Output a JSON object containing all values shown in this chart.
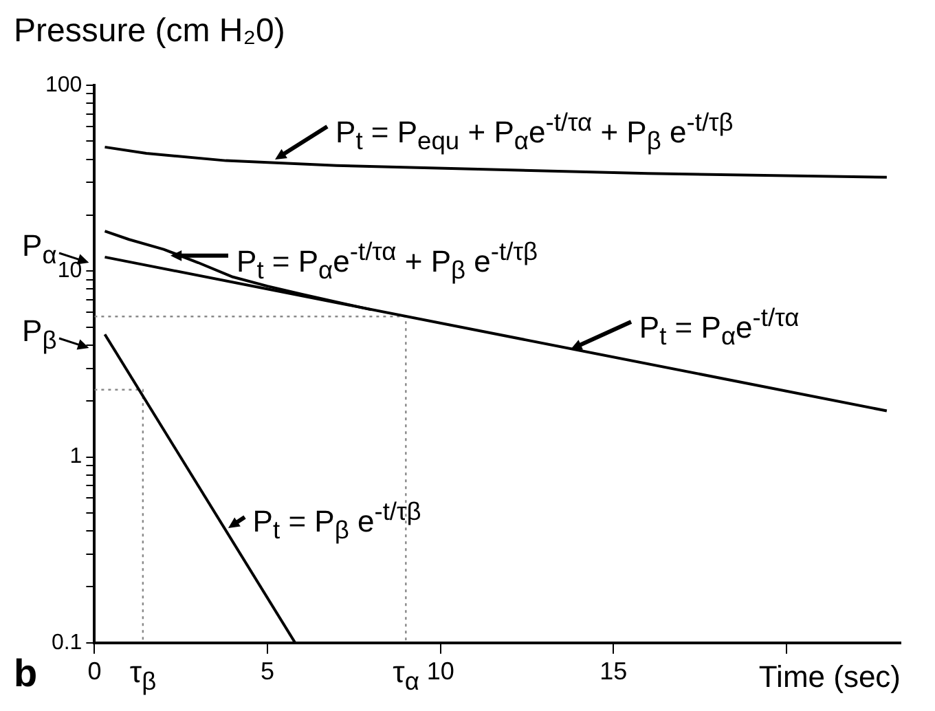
{
  "chart_data": {
    "type": "line",
    "ylabel": "Pressure (cm H₂0)",
    "xlabel": "Time (sec)",
    "log": "y",
    "grid": false,
    "legend": false,
    "marker": "none",
    "line_style": "solid",
    "xlim": [
      0,
      23.3
    ],
    "xticks": [
      0,
      5,
      10,
      15,
      {
        "value": 20,
        "label": null
      }
    ],
    "ylim": [
      0.1,
      100
    ],
    "yticks": [
      0.1,
      {
        "value": 0.2,
        "label": null
      },
      {
        "value": 0.3,
        "label": null
      },
      {
        "value": 0.4,
        "label": null
      },
      {
        "value": 0.5,
        "label": null
      },
      {
        "value": 0.6,
        "label": null
      },
      {
        "value": 0.7,
        "label": null
      },
      {
        "value": 0.8,
        "label": null
      },
      {
        "value": 0.9,
        "label": null
      },
      1,
      {
        "value": 2,
        "label": null
      },
      {
        "value": 3,
        "label": null
      },
      {
        "value": 4,
        "label": null
      },
      {
        "value": 5,
        "label": null
      },
      {
        "value": 6,
        "label": null
      },
      {
        "value": 7,
        "label": null
      },
      {
        "value": 8,
        "label": null
      },
      {
        "value": 9,
        "label": null
      },
      10,
      {
        "value": 20,
        "label": null
      },
      {
        "value": 30,
        "label": null
      },
      {
        "value": 40,
        "label": null
      },
      {
        "value": 50,
        "label": null
      },
      {
        "value": 60,
        "label": null
      },
      {
        "value": 70,
        "label": null
      },
      {
        "value": 80,
        "label": null
      },
      {
        "value": 90,
        "label": null
      },
      100
    ],
    "series": [
      {
        "type": "line",
        "color": "#000000",
        "x": [
          0.3,
          1.5,
          3.8,
          7,
          10.7,
          16,
          22.9
        ],
        "values": [
          46.5,
          43,
          39.3,
          37,
          35.5,
          33.5,
          32
        ]
      },
      {
        "type": "line",
        "color": "#000000",
        "x": [
          0.3,
          1,
          2,
          3,
          4,
          5,
          6,
          8
        ],
        "values": [
          16.4,
          14.8,
          13.1,
          11.1,
          9.3,
          8.3,
          7.5,
          6.2
        ]
      },
      {
        "type": "line",
        "color": "#000000",
        "x": [
          0.3,
          22.9
        ],
        "values": [
          11.9,
          1.77
        ]
      },
      {
        "type": "line",
        "color": "#000000",
        "x": [
          0.3,
          5.8
        ],
        "values": [
          4.57,
          0.1
        ]
      },
      {
        "type": "line",
        "color": "#888888",
        "line_style": "dotted",
        "x": [
          0,
          9,
          9
        ],
        "values": [
          5.7,
          5.7,
          0.1
        ]
      },
      {
        "type": "line",
        "color": "#888888",
        "line_style": "dotted",
        "x": [
          0,
          1.4,
          1.4
        ],
        "values": [
          2.3,
          2.3,
          0.1
        ]
      }
    ],
    "annotations": [
      "P$_{t}$ = P$_{equ}$ + P$_{α}$e$^{-t/τα}$ + P$_{β}$ e$^{-t/τβ}$",
      "P$_{t}$ = P$_{α}$e$^{-t/τα}$ + P$_{β}$ e$^{-t/τβ}$",
      {
        "text": "P$_{t}$ = P$_{α}$e$^{-t/τα}$",
        "x": 13.6,
        "y": 3.9
      },
      {
        "text": "P$_{t}$ = P$_{β}$ e$^{-t/τβ}$",
        "x": 3.7,
        "y": 0.43
      },
      "P$_{α}$",
      "P$_{β}$",
      {
        "text": "τ$_{β}$",
        "x": 1.4,
        "y": 0.1
      },
      {
        "text": "τ$_{α}$",
        "x": 9,
        "y": 0.1
      },
      "b"
    ]
  }
}
